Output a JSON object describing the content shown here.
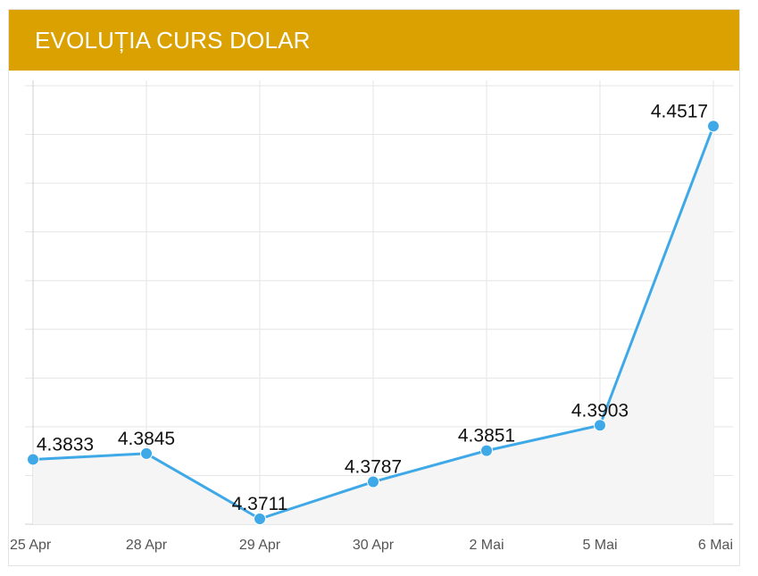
{
  "header": {
    "title": "EVOLUȚIA CURS DOLAR"
  },
  "chart_data": {
    "type": "area",
    "title": "EVOLUȚIA CURS DOLAR",
    "xlabel": "",
    "ylabel": "",
    "categories": [
      "25 Apr",
      "28 Apr",
      "29 Apr",
      "30 Apr",
      "2 Mai",
      "5 Mai",
      "6 Mai"
    ],
    "series": [
      {
        "values": [
          4.3833,
          4.3845,
          4.3711,
          4.3787,
          4.3851,
          4.3903,
          4.4517
        ]
      }
    ],
    "ylim": [
      4.37,
      4.46
    ],
    "grid": true,
    "legend": "none",
    "colors": {
      "line": "#3fa9e8",
      "marker": "#3fa9e8",
      "fill": "#f5f5f5",
      "grid": "#e6e6e6"
    }
  }
}
